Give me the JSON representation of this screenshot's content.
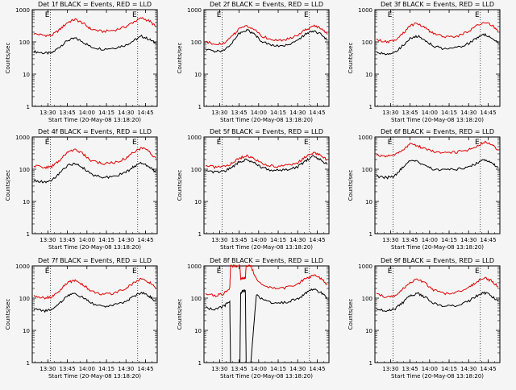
{
  "start_time_label": "Start Time (20-May-08 13:18:20)",
  "ylabel": "Counts/sec",
  "x_ticks": [
    "13:30",
    "13:45",
    "14:00",
    "14:15",
    "14:30",
    "14:45"
  ],
  "y_ticks": [
    "1",
    "10",
    "100",
    "1000"
  ],
  "colors": {
    "events": "#000000",
    "lld": "#e00000",
    "background": "#f5f5f5"
  },
  "chart_data": [
    {
      "type": "line",
      "title": "Det 1f BLACK = Events, RED = LLD",
      "xlabel": "Start Time (20-May-08 13:18:20)",
      "ylabel": "Counts/sec",
      "xlim": [
        13.3,
        14.9
      ],
      "ylim": [
        1,
        1000
      ],
      "yscale": "log",
      "x_ticks": [
        "13:30",
        "13:45",
        "14:00",
        "14:15",
        "14:30",
        "14:45"
      ],
      "markers": [
        "E",
        "E"
      ],
      "vlines": [
        "13:32",
        "14:39"
      ],
      "series": [
        {
          "name": "Events",
          "color": "#000000",
          "x": [
            13.32,
            13.45,
            13.55,
            13.65,
            13.75,
            13.85,
            13.95,
            14.05,
            14.2,
            14.35,
            14.5,
            14.6,
            14.7,
            14.8,
            14.88
          ],
          "y": [
            50,
            45,
            45,
            70,
            110,
            130,
            100,
            70,
            60,
            65,
            80,
            110,
            150,
            120,
            90
          ]
        },
        {
          "name": "LLD",
          "color": "#e00000",
          "x": [
            13.32,
            13.45,
            13.55,
            13.65,
            13.75,
            13.85,
            13.95,
            14.05,
            14.2,
            14.35,
            14.5,
            14.6,
            14.7,
            14.8,
            14.88
          ],
          "y": [
            180,
            160,
            160,
            240,
            400,
            500,
            380,
            250,
            210,
            230,
            300,
            420,
            550,
            450,
            300
          ]
        }
      ]
    },
    {
      "type": "line",
      "title": "Det 2f BLACK = Events, RED = LLD",
      "xlabel": "Start Time (20-May-08 13:18:20)",
      "ylabel": "Counts/sec",
      "xlim": [
        13.3,
        14.9
      ],
      "ylim": [
        1,
        1000
      ],
      "yscale": "log",
      "x_ticks": [
        "13:30",
        "13:45",
        "14:00",
        "14:15",
        "14:30",
        "14:45"
      ],
      "markers": [
        "E",
        "E"
      ],
      "vlines": [
        "13:32",
        "14:39"
      ],
      "series": [
        {
          "name": "Events",
          "color": "#000000",
          "x": [
            13.32,
            13.45,
            13.55,
            13.65,
            13.75,
            13.85,
            13.95,
            14.05,
            14.2,
            14.35,
            14.5,
            14.6,
            14.7,
            14.8,
            14.88
          ],
          "y": [
            60,
            50,
            55,
            90,
            180,
            240,
            170,
            100,
            75,
            80,
            110,
            170,
            220,
            170,
            110
          ]
        },
        {
          "name": "LLD",
          "color": "#e00000",
          "x": [
            13.32,
            13.45,
            13.55,
            13.65,
            13.75,
            13.85,
            13.95,
            14.05,
            14.2,
            14.35,
            14.5,
            14.6,
            14.7,
            14.8,
            14.88
          ],
          "y": [
            100,
            85,
            90,
            140,
            250,
            320,
            240,
            150,
            110,
            120,
            160,
            240,
            320,
            260,
            170
          ]
        }
      ]
    },
    {
      "type": "line",
      "title": "Det 3f BLACK = Events, RED = LLD",
      "xlabel": "Start Time (20-May-08 13:18:20)",
      "ylabel": "Counts/sec",
      "xlim": [
        13.3,
        14.9
      ],
      "ylim": [
        1,
        1000
      ],
      "yscale": "log",
      "x_ticks": [
        "13:30",
        "13:45",
        "14:00",
        "14:15",
        "14:30",
        "14:45"
      ],
      "markers": [
        "E",
        "E"
      ],
      "vlines": [
        "13:32",
        "14:39"
      ],
      "series": [
        {
          "name": "Events",
          "color": "#000000",
          "x": [
            13.32,
            13.45,
            13.55,
            13.65,
            13.75,
            13.85,
            13.95,
            14.05,
            14.2,
            14.35,
            14.5,
            14.6,
            14.7,
            14.8,
            14.88
          ],
          "y": [
            50,
            40,
            45,
            75,
            130,
            150,
            110,
            75,
            60,
            65,
            90,
            130,
            170,
            130,
            90
          ]
        },
        {
          "name": "LLD",
          "color": "#e00000",
          "x": [
            13.32,
            13.45,
            13.55,
            13.65,
            13.75,
            13.85,
            13.95,
            14.05,
            14.2,
            14.35,
            14.5,
            14.6,
            14.7,
            14.8,
            14.88
          ],
          "y": [
            120,
            100,
            110,
            170,
            320,
            380,
            270,
            180,
            140,
            150,
            210,
            320,
            420,
            330,
            210
          ]
        }
      ]
    },
    {
      "type": "line",
      "title": "Det 4f BLACK = Events, RED = LLD",
      "xlabel": "Start Time (20-May-08 13:18:20)",
      "ylabel": "Counts/sec",
      "xlim": [
        13.3,
        14.9
      ],
      "ylim": [
        1,
        1000
      ],
      "yscale": "log",
      "x_ticks": [
        "13:30",
        "13:45",
        "14:00",
        "14:15",
        "14:30",
        "14:45"
      ],
      "markers": [
        "E",
        "E"
      ],
      "vlines": [
        "13:32",
        "14:39"
      ],
      "series": [
        {
          "name": "Events",
          "color": "#000000",
          "x": [
            13.32,
            13.45,
            13.55,
            13.65,
            13.75,
            13.85,
            13.95,
            14.05,
            14.2,
            14.35,
            14.5,
            14.6,
            14.7,
            14.8,
            14.88
          ],
          "y": [
            45,
            40,
            45,
            75,
            130,
            150,
            110,
            70,
            55,
            60,
            80,
            120,
            160,
            120,
            80
          ]
        },
        {
          "name": "LLD",
          "color": "#e00000",
          "x": [
            13.32,
            13.45,
            13.55,
            13.65,
            13.75,
            13.85,
            13.95,
            14.05,
            14.2,
            14.35,
            14.5,
            14.6,
            14.7,
            14.8,
            14.88
          ],
          "y": [
            130,
            110,
            120,
            190,
            350,
            420,
            300,
            190,
            150,
            160,
            220,
            340,
            460,
            350,
            220
          ]
        }
      ]
    },
    {
      "type": "line",
      "title": "Det 5f BLACK = Events, RED = LLD",
      "xlabel": "Start Time (20-May-08 13:18:20)",
      "ylabel": "Counts/sec",
      "xlim": [
        13.3,
        14.9
      ],
      "ylim": [
        1,
        1000
      ],
      "yscale": "log",
      "x_ticks": [
        "13:30",
        "13:45",
        "14:00",
        "14:15",
        "14:30",
        "14:45"
      ],
      "markers": [
        "E",
        "E"
      ],
      "vlines": [
        "13:32",
        "14:39"
      ],
      "series": [
        {
          "name": "Events",
          "color": "#000000",
          "x": [
            13.32,
            13.45,
            13.55,
            13.65,
            13.75,
            13.85,
            13.95,
            14.05,
            14.2,
            14.35,
            14.5,
            14.6,
            14.7,
            14.8,
            14.88
          ],
          "y": [
            90,
            80,
            85,
            110,
            170,
            200,
            160,
            110,
            90,
            95,
            120,
            180,
            250,
            200,
            140
          ]
        },
        {
          "name": "LLD",
          "color": "#e00000",
          "x": [
            13.32,
            13.45,
            13.55,
            13.65,
            13.75,
            13.85,
            13.95,
            14.05,
            14.2,
            14.35,
            14.5,
            14.6,
            14.7,
            14.8,
            14.88
          ],
          "y": [
            130,
            115,
            120,
            150,
            220,
            260,
            210,
            150,
            120,
            130,
            160,
            240,
            330,
            270,
            190
          ]
        }
      ]
    },
    {
      "type": "line",
      "title": "Det 6f BLACK = Events, RED = LLD",
      "xlabel": "Start Time (20-May-08 13:18:20)",
      "ylabel": "Counts/sec",
      "xlim": [
        13.3,
        14.9
      ],
      "ylim": [
        1,
        1000
      ],
      "yscale": "log",
      "x_ticks": [
        "13:30",
        "13:45",
        "14:00",
        "14:15",
        "14:30",
        "14:45"
      ],
      "markers": [
        "E",
        "E"
      ],
      "vlines": [
        "13:32",
        "14:39"
      ],
      "series": [
        {
          "name": "Events",
          "color": "#000000",
          "x": [
            13.32,
            13.45,
            13.55,
            13.65,
            13.75,
            13.85,
            13.95,
            14.05,
            14.2,
            14.35,
            14.5,
            14.6,
            14.7,
            14.8,
            14.88
          ],
          "y": [
            60,
            55,
            60,
            110,
            190,
            170,
            130,
            100,
            95,
            100,
            120,
            150,
            200,
            160,
            110
          ]
        },
        {
          "name": "LLD",
          "color": "#e00000",
          "x": [
            13.32,
            13.45,
            13.55,
            13.65,
            13.75,
            13.85,
            13.95,
            14.05,
            14.2,
            14.35,
            14.5,
            14.6,
            14.7,
            14.8,
            14.88
          ],
          "y": [
            270,
            260,
            270,
            380,
            600,
            520,
            420,
            350,
            330,
            340,
            400,
            520,
            700,
            580,
            380
          ]
        }
      ]
    },
    {
      "type": "line",
      "title": "Det 7f BLACK = Events, RED = LLD",
      "xlabel": "Start Time (20-May-08 13:18:20)",
      "ylabel": "Counts/sec",
      "xlim": [
        13.3,
        14.9
      ],
      "ylim": [
        1,
        1000
      ],
      "yscale": "log",
      "x_ticks": [
        "13:30",
        "13:45",
        "14:00",
        "14:15",
        "14:30",
        "14:45"
      ],
      "markers": [
        "E",
        "E"
      ],
      "vlines": [
        "13:32",
        "14:39"
      ],
      "series": [
        {
          "name": "Events",
          "color": "#000000",
          "x": [
            13.32,
            13.45,
            13.55,
            13.65,
            13.75,
            13.85,
            13.95,
            14.05,
            14.2,
            14.35,
            14.5,
            14.6,
            14.7,
            14.8,
            14.88
          ],
          "y": [
            45,
            40,
            45,
            70,
            120,
            140,
            105,
            70,
            55,
            60,
            80,
            115,
            150,
            115,
            80
          ]
        },
        {
          "name": "LLD",
          "color": "#e00000",
          "x": [
            13.32,
            13.45,
            13.55,
            13.65,
            13.75,
            13.85,
            13.95,
            14.05,
            14.2,
            14.35,
            14.5,
            14.6,
            14.7,
            14.8,
            14.88
          ],
          "y": [
            120,
            100,
            110,
            170,
            300,
            360,
            260,
            170,
            130,
            140,
            200,
            300,
            400,
            310,
            200
          ]
        }
      ]
    },
    {
      "type": "line",
      "title": "Det 8f BLACK = Events, RED = LLD",
      "xlabel": "Start Time (20-May-08 13:18:20)",
      "ylabel": "Counts/sec",
      "xlim": [
        13.3,
        14.9
      ],
      "ylim": [
        1,
        1000
      ],
      "yscale": "log",
      "x_ticks": [
        "13:30",
        "13:45",
        "14:00",
        "14:15",
        "14:30",
        "14:45"
      ],
      "markers": [
        "E",
        "E"
      ],
      "vlines": [
        "13:32",
        "14:39"
      ],
      "series": [
        {
          "name": "Events",
          "color": "#000000",
          "x": [
            13.32,
            13.45,
            13.55,
            13.63,
            13.64,
            13.7,
            13.76,
            13.77,
            13.8,
            13.83,
            13.84,
            13.9,
            13.97,
            14.05,
            14.2,
            14.35,
            14.5,
            14.6,
            14.7,
            14.8,
            14.88
          ],
          "y": [
            50,
            45,
            55,
            80,
            1,
            1,
            1,
            150,
            170,
            170,
            1,
            1,
            130,
            90,
            70,
            75,
            95,
            140,
            190,
            150,
            100
          ]
        },
        {
          "name": "LLD",
          "color": "#e00000",
          "x": [
            13.32,
            13.45,
            13.55,
            13.63,
            13.64,
            13.7,
            13.76,
            13.77,
            13.8,
            13.83,
            13.84,
            13.9,
            13.97,
            14.05,
            14.2,
            14.35,
            14.5,
            14.6,
            14.7,
            14.8,
            14.88
          ],
          "y": [
            140,
            120,
            140,
            200,
            1000,
            1000,
            1000,
            400,
            420,
            420,
            1000,
            1000,
            380,
            250,
            200,
            210,
            280,
            400,
            520,
            400,
            260
          ]
        }
      ]
    },
    {
      "type": "line",
      "title": "Det 9f BLACK = Events, RED = LLD",
      "xlabel": "Start Time (20-May-08 13:18:20)",
      "ylabel": "Counts/sec",
      "xlim": [
        13.3,
        14.9
      ],
      "ylim": [
        1,
        1000
      ],
      "yscale": "log",
      "x_ticks": [
        "13:30",
        "13:45",
        "14:00",
        "14:15",
        "14:30",
        "14:45"
      ],
      "markers": [
        "E",
        "E"
      ],
      "vlines": [
        "13:32",
        "14:39"
      ],
      "series": [
        {
          "name": "Events",
          "color": "#000000",
          "x": [
            13.32,
            13.45,
            13.55,
            13.65,
            13.75,
            13.85,
            13.95,
            14.05,
            14.2,
            14.35,
            14.5,
            14.6,
            14.7,
            14.8,
            14.88
          ],
          "y": [
            45,
            40,
            45,
            70,
            120,
            140,
            105,
            70,
            55,
            60,
            80,
            115,
            150,
            115,
            80
          ]
        },
        {
          "name": "LLD",
          "color": "#e00000",
          "x": [
            13.32,
            13.45,
            13.55,
            13.65,
            13.75,
            13.85,
            13.95,
            14.05,
            14.2,
            14.35,
            14.5,
            14.6,
            14.7,
            14.8,
            14.88
          ],
          "y": [
            130,
            110,
            120,
            180,
            320,
            380,
            280,
            180,
            140,
            150,
            210,
            320,
            430,
            340,
            220
          ]
        }
      ]
    }
  ]
}
